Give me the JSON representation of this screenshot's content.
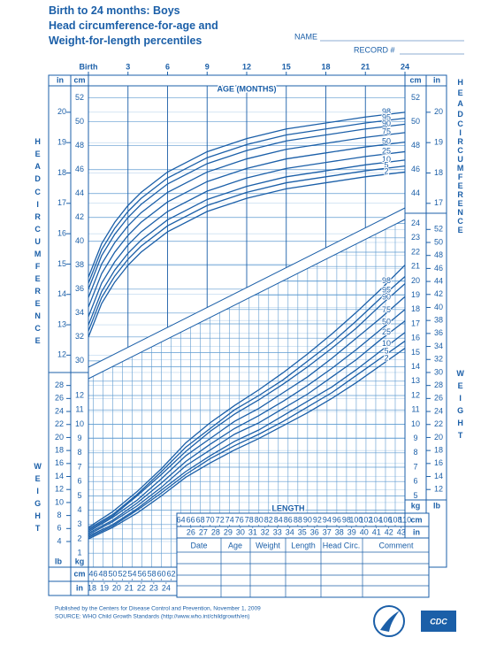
{
  "header": {
    "title_lines": [
      "Birth to 24 months: Boys",
      "Head circumference-for-age and",
      "Weight-for-length percentiles"
    ],
    "name_label": "NAME",
    "record_label": "RECORD #"
  },
  "chart_data": [
    {
      "type": "line",
      "title": "AGE (MONTHS)",
      "side_label_lines": [
        "HEAD",
        "CIRCUMFERENCE"
      ],
      "y_unit": "cm",
      "y2_unit": "in",
      "x": [
        0,
        1,
        2,
        3,
        4,
        6,
        9,
        12,
        15,
        18,
        21,
        24
      ],
      "xlim": [
        0,
        24
      ],
      "xticks": [
        {
          "value": 0,
          "label": "Birth"
        },
        3,
        6,
        9,
        12,
        15,
        18,
        21,
        24
      ],
      "ylim": [
        29.1,
        53.9
      ],
      "yticks": [
        30,
        32,
        34,
        36,
        38,
        40,
        42,
        44,
        46,
        48,
        50,
        52
      ],
      "y2lim": [
        11.457,
        21.22
      ],
      "y2ticks": [
        12,
        13,
        14,
        15,
        16,
        17,
        18,
        19,
        20
      ],
      "grid": true,
      "series": [
        {
          "name": "98",
          "color": "#1b5fa8",
          "values": [
            37.0,
            39.8,
            41.6,
            43.0,
            44.1,
            45.8,
            47.5,
            48.6,
            49.4,
            49.9,
            50.4,
            50.8
          ]
        },
        {
          "name": "95",
          "color": "#1b5fa8",
          "values": [
            36.5,
            39.3,
            41.1,
            42.5,
            43.6,
            45.3,
            47.0,
            48.1,
            48.9,
            49.4,
            49.9,
            50.3
          ]
        },
        {
          "name": "90",
          "color": "#1b5fa8",
          "values": [
            36.0,
            38.8,
            40.6,
            42.0,
            43.1,
            44.8,
            46.5,
            47.6,
            48.4,
            48.9,
            49.4,
            49.8
          ]
        },
        {
          "name": "75",
          "color": "#1b5fa8",
          "values": [
            35.3,
            38.1,
            39.9,
            41.3,
            42.4,
            44.1,
            45.8,
            46.9,
            47.7,
            48.2,
            48.7,
            49.1
          ]
        },
        {
          "name": "50",
          "color": "#1b5fa8",
          "values": [
            34.5,
            37.3,
            39.1,
            40.5,
            41.6,
            43.3,
            45.0,
            46.1,
            46.9,
            47.4,
            47.9,
            48.3
          ]
        },
        {
          "name": "25",
          "color": "#1b5fa8",
          "values": [
            33.7,
            36.5,
            38.3,
            39.7,
            40.8,
            42.5,
            44.2,
            45.3,
            46.1,
            46.6,
            47.1,
            47.5
          ]
        },
        {
          "name": "10",
          "color": "#1b5fa8",
          "values": [
            33.0,
            35.8,
            37.6,
            39.0,
            40.1,
            41.8,
            43.5,
            44.6,
            45.4,
            45.9,
            46.4,
            46.8
          ]
        },
        {
          "name": "5",
          "color": "#1b5fa8",
          "values": [
            32.5,
            35.3,
            37.1,
            38.5,
            39.6,
            41.3,
            43.0,
            44.1,
            44.9,
            45.4,
            45.9,
            46.3
          ]
        },
        {
          "name": "2",
          "color": "#1b5fa8",
          "values": [
            32.0,
            34.8,
            36.6,
            38.0,
            39.1,
            40.8,
            42.5,
            43.6,
            44.4,
            44.9,
            45.4,
            45.8
          ]
        }
      ]
    },
    {
      "type": "line",
      "title": "LENGTH",
      "side_label": "WEIGHT",
      "x_unit": "cm",
      "x2_unit": "in",
      "y_unit": "kg",
      "y2_unit": "lb",
      "x": [
        45,
        50,
        55,
        60,
        65,
        70,
        75,
        80,
        85,
        90,
        95,
        100,
        105,
        110
      ],
      "xlim": [
        45,
        110
      ],
      "xticks": [
        46,
        48,
        50,
        52,
        54,
        56,
        58,
        60,
        62,
        64,
        66,
        68,
        70,
        72,
        74,
        76,
        78,
        80,
        82,
        84,
        86,
        88,
        90,
        92,
        94,
        96,
        98,
        100,
        102,
        104,
        106,
        108,
        110
      ],
      "x2lim": [
        17.717,
        43.307
      ],
      "x2ticks": [
        18,
        19,
        20,
        21,
        22,
        23,
        24,
        26,
        27,
        28,
        29,
        30,
        31,
        32,
        33,
        34,
        35,
        36,
        37,
        38,
        39,
        40,
        41,
        42,
        43
      ],
      "ylim": [
        0,
        25
      ],
      "yticks": [
        1,
        2,
        3,
        4,
        5,
        6,
        7,
        8,
        9,
        10,
        11,
        12,
        13,
        14,
        15,
        16,
        17,
        18,
        19,
        20,
        21,
        22,
        23,
        24
      ],
      "y2lim": [
        0,
        55.116
      ],
      "y2ticks": [
        4,
        6,
        8,
        10,
        12,
        14,
        16,
        18,
        20,
        22,
        24,
        26,
        28,
        30,
        32,
        34,
        36,
        38,
        40,
        42,
        44,
        46,
        48,
        50,
        52
      ],
      "grid": true,
      "series": [
        {
          "name": "98",
          "color": "#1b5fa8",
          "values": [
            2.8,
            3.9,
            5.3,
            6.9,
            8.7,
            10.1,
            11.3,
            12.4,
            13.6,
            14.9,
            16.3,
            17.8,
            19.4,
            21.1
          ]
        },
        {
          "name": "95",
          "color": "#1b5fa8",
          "values": [
            2.7,
            3.7,
            5.1,
            6.7,
            8.4,
            9.7,
            11.0,
            12.0,
            13.1,
            14.4,
            15.7,
            17.2,
            18.8,
            20.3
          ]
        },
        {
          "name": "90",
          "color": "#1b5fa8",
          "values": [
            2.6,
            3.6,
            5.0,
            6.5,
            8.1,
            9.5,
            10.7,
            11.7,
            12.8,
            14.0,
            15.3,
            16.7,
            18.3,
            19.8
          ]
        },
        {
          "name": "75",
          "color": "#1b5fa8",
          "values": [
            2.5,
            3.5,
            4.7,
            6.2,
            7.8,
            9.0,
            10.2,
            11.1,
            12.2,
            13.3,
            14.6,
            16.0,
            17.4,
            18.9
          ]
        },
        {
          "name": "50",
          "color": "#1b5fa8",
          "values": [
            2.4,
            3.3,
            4.5,
            5.9,
            7.4,
            8.6,
            9.7,
            10.6,
            11.6,
            12.7,
            13.9,
            15.2,
            16.6,
            18.0
          ]
        },
        {
          "name": "25",
          "color": "#1b5fa8",
          "values": [
            2.3,
            3.2,
            4.3,
            5.6,
            7.1,
            8.2,
            9.3,
            10.1,
            11.1,
            12.1,
            13.3,
            14.5,
            15.9,
            17.2
          ]
        },
        {
          "name": "10",
          "color": "#1b5fa8",
          "values": [
            2.2,
            3.0,
            4.1,
            5.4,
            6.7,
            7.8,
            8.8,
            9.6,
            10.6,
            11.6,
            12.6,
            13.8,
            15.1,
            16.4
          ]
        },
        {
          "name": "5",
          "color": "#1b5fa8",
          "values": [
            2.1,
            2.9,
            4.0,
            5.2,
            6.5,
            7.6,
            8.5,
            9.3,
            10.2,
            11.2,
            12.2,
            13.4,
            14.6,
            15.8
          ]
        },
        {
          "name": "2",
          "color": "#1b5fa8",
          "values": [
            2.0,
            2.8,
            3.8,
            5.0,
            6.3,
            7.3,
            8.2,
            9.0,
            9.9,
            10.8,
            11.8,
            12.9,
            14.1,
            15.3
          ]
        }
      ]
    }
  ],
  "record_table": {
    "columns": [
      "Date",
      "Age",
      "Weight",
      "Length",
      "Head Circ.",
      "Comment"
    ]
  },
  "footer": {
    "lines": [
      "Published by the Centers for Disease Control and Prevention, November 1, 2009",
      "SOURCE:  WHO Child Growth Standards (http://www.who.int/childgrowth/en)"
    ]
  },
  "logo_text": "CDC"
}
